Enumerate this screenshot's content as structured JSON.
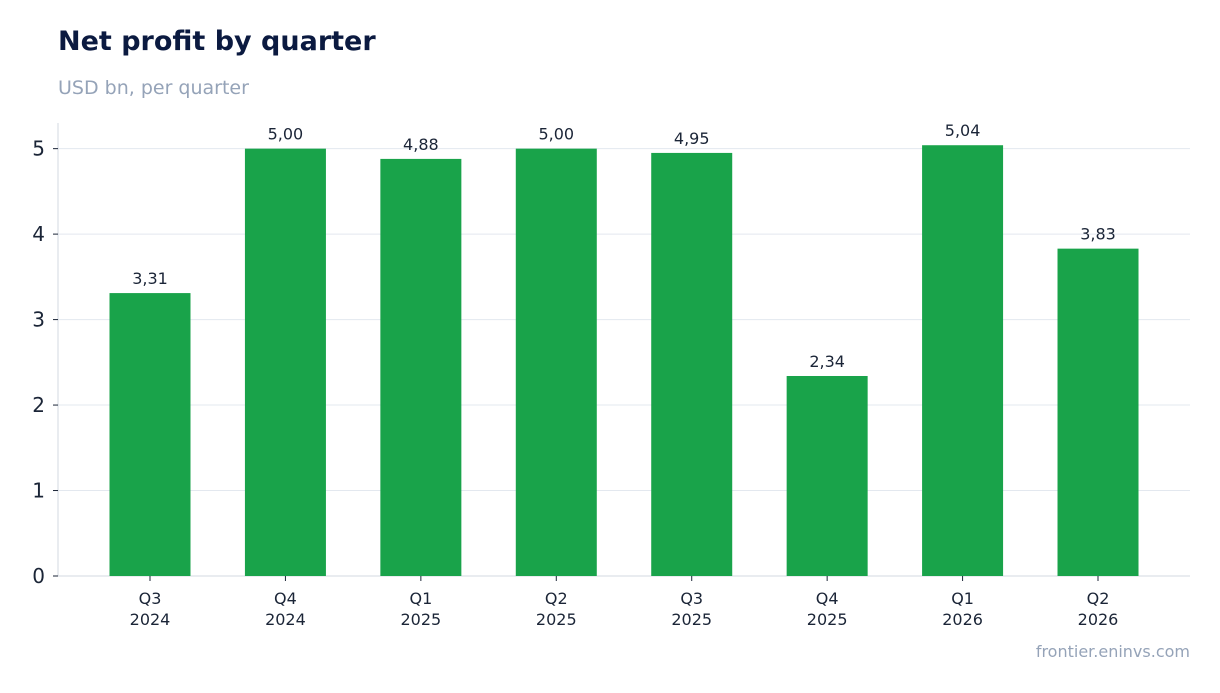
{
  "header": {
    "title": "Net profit by quarter",
    "subtitle": "USD bn, per quarter"
  },
  "footer": {
    "source": "frontier.eninvs.com"
  },
  "colors": {
    "bar": "#19a34a",
    "grid": "#e3e8ef",
    "axis": "#d3d9e2",
    "title": "#0b1a40",
    "muted": "#95a3b8",
    "text": "#1b2537"
  },
  "chart_data": {
    "type": "bar",
    "title": "Net profit by quarter",
    "subtitle": "USD bn, per quarter",
    "categories": [
      [
        "Q3",
        "2024"
      ],
      [
        "Q4",
        "2024"
      ],
      [
        "Q1",
        "2025"
      ],
      [
        "Q2",
        "2025"
      ],
      [
        "Q3",
        "2025"
      ],
      [
        "Q4",
        "2025"
      ],
      [
        "Q1",
        "2026"
      ],
      [
        "Q2",
        "2026"
      ]
    ],
    "values": [
      3.31,
      5.0,
      4.88,
      5.0,
      4.95,
      2.34,
      5.04,
      3.83
    ],
    "data_labels": [
      "3,31",
      "5,00",
      "4,88",
      "5,00",
      "4,95",
      "2,34",
      "5,04",
      "3,83"
    ],
    "yticks": [
      "0",
      "1",
      "2",
      "3",
      "4",
      "5"
    ],
    "ylim": [
      0,
      5.3
    ],
    "grid": true,
    "legend": "none"
  }
}
